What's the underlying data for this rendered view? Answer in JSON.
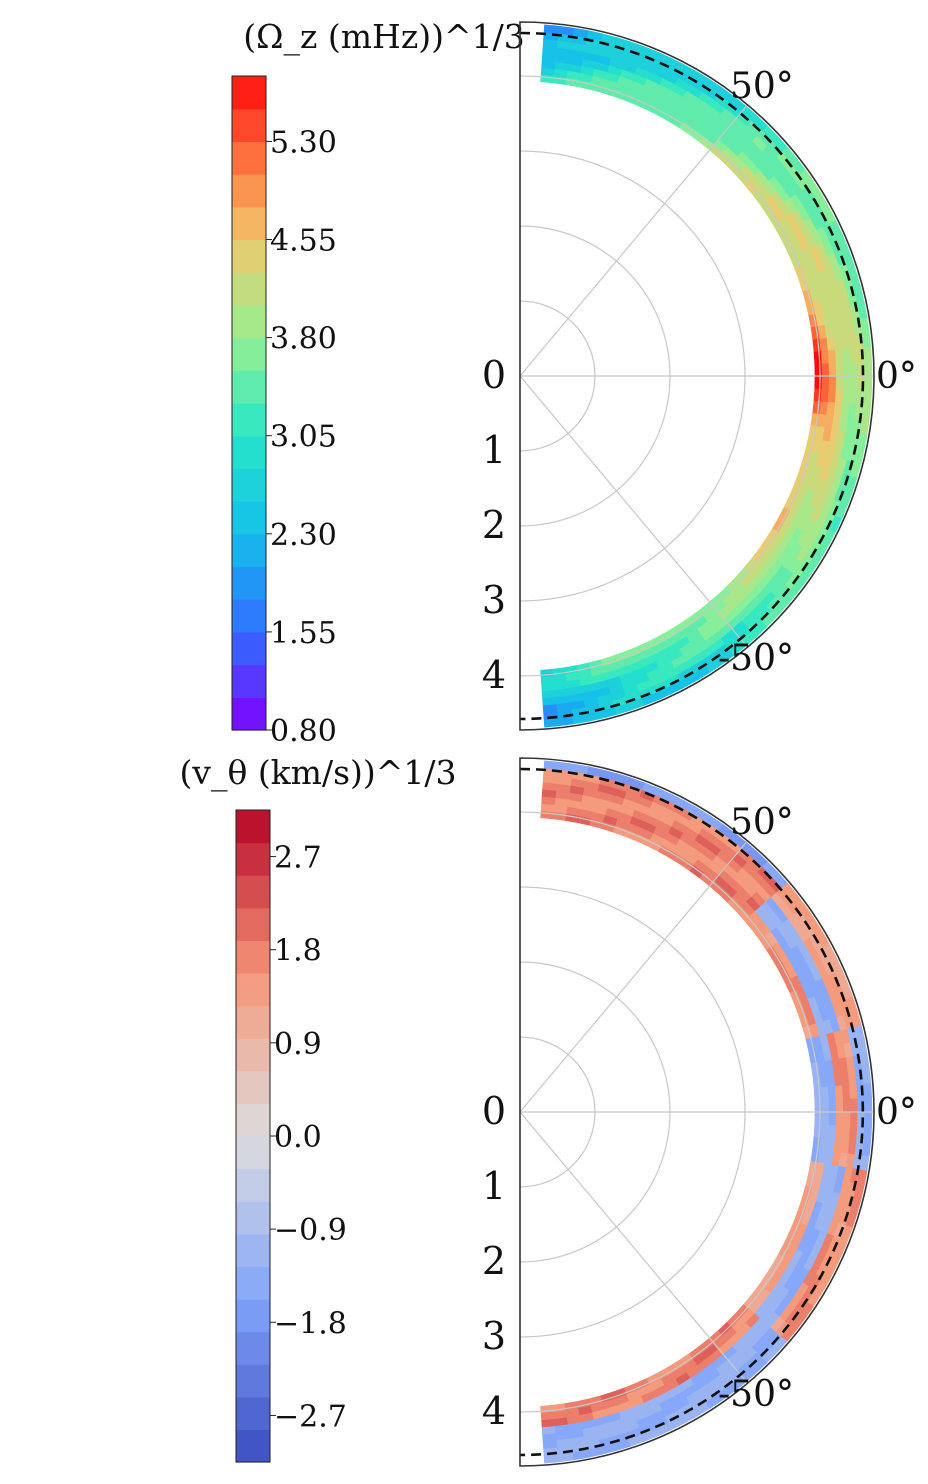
{
  "chart_data": [
    {
      "type": "heatmap",
      "projection": "polar half-disk (meridional plane)",
      "colorbar": {
        "title": "(Ω_z (mHz))^1/3",
        "colormap": "rainbow",
        "levels": 20,
        "range": [
          0.8,
          5.8
        ],
        "tick_values": [
          0.8,
          1.55,
          2.3,
          3.05,
          3.8,
          4.55,
          5.3
        ],
        "tick_labels": [
          "0.80",
          "1.55",
          "2.30",
          "3.05",
          "3.80",
          "4.55",
          "5.30"
        ]
      },
      "radial_tick_labels": [
        "0",
        "1",
        "2",
        "3",
        "4"
      ],
      "latitude_labels": [
        "50°",
        "0°",
        "-50°"
      ],
      "grid": true,
      "dashed_boundary": true
    },
    {
      "type": "heatmap",
      "projection": "polar half-disk (meridional plane)",
      "colorbar": {
        "title": "(v_θ (km/s))^1/3",
        "colormap": "coolwarm",
        "levels": 20,
        "range": [
          -3.15,
          3.15
        ],
        "tick_values": [
          -2.7,
          -1.8,
          -0.9,
          0.0,
          0.9,
          1.8,
          2.7
        ],
        "tick_labels": [
          "−2.7",
          "−1.8",
          "−0.9",
          "0.0",
          "0.9",
          "1.8",
          "2.7"
        ]
      },
      "radial_tick_labels": [
        "0",
        "1",
        "2",
        "3",
        "4"
      ],
      "latitude_labels": [
        "50°",
        "0°",
        "-50°"
      ],
      "grid": true,
      "dashed_boundary": true
    }
  ]
}
